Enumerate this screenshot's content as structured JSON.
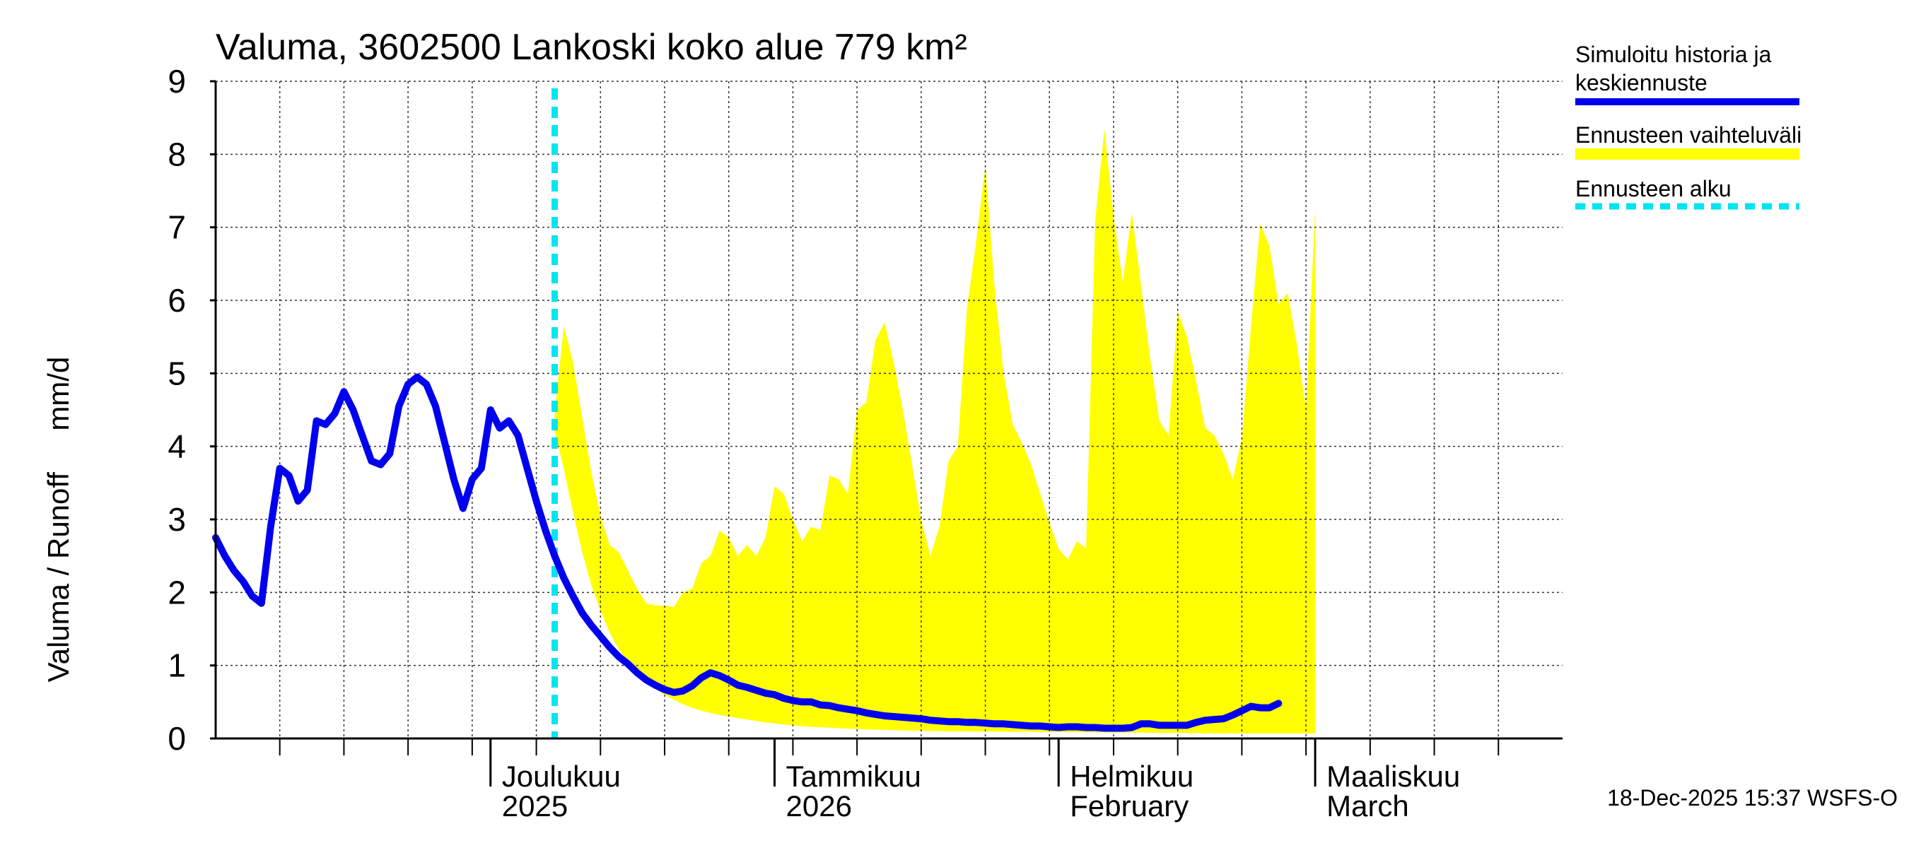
{
  "chart_data": {
    "type": "area",
    "title": "Valuma, 3602500 Lankoski koko alue 779 km²",
    "ylabel": "Valuma / Runoff     mm/d",
    "ylim": [
      0,
      9
    ],
    "yticks": [
      "0",
      "1",
      "2",
      "3",
      "4",
      "5",
      "6",
      "7",
      "8",
      "9"
    ],
    "x_unit": "day index from 2025-11-01 (day 0) to 2026-03-28 (day 147)",
    "xlim": [
      0,
      147
    ],
    "month_labels": [
      {
        "day": 30,
        "line1": "Joulukuu",
        "line2": "2025"
      },
      {
        "day": 61,
        "line1": "Tammikuu",
        "line2": "2026"
      },
      {
        "day": 92,
        "line1": "Helmikuu",
        "line2": "February"
      },
      {
        "day": 120,
        "line1": "Maaliskuu",
        "line2": "March"
      }
    ],
    "forecast_start_day": 37,
    "legend": {
      "placement": "right",
      "items": [
        {
          "label_line1": "Simuloitu historia ja",
          "label_line2": "keskiennuste",
          "color": "#0000ee",
          "style": "solid"
        },
        {
          "label_line1": "Ennusteen vaihteluväli",
          "label_line2": "",
          "color": "#ffff00",
          "style": "band"
        },
        {
          "label_line1": "Ennusteen alku",
          "label_line2": "",
          "color": "#00e5ee",
          "style": "dashed"
        }
      ]
    },
    "timestamp": "18-Dec-2025 15:37 WSFS-O",
    "series": [
      {
        "name": "Simuloitu historia ja keskiennuste",
        "color": "#0000ee",
        "points": [
          [
            0,
            2.75
          ],
          [
            1,
            2.5
          ],
          [
            2,
            2.3
          ],
          [
            3,
            2.15
          ],
          [
            4,
            1.95
          ],
          [
            5,
            1.85
          ],
          [
            6,
            2.9
          ],
          [
            7,
            3.7
          ],
          [
            8,
            3.6
          ],
          [
            9,
            3.25
          ],
          [
            10,
            3.4
          ],
          [
            11,
            4.35
          ],
          [
            12,
            4.3
          ],
          [
            13,
            4.45
          ],
          [
            14,
            4.75
          ],
          [
            15,
            4.5
          ],
          [
            16,
            4.15
          ],
          [
            17,
            3.8
          ],
          [
            18,
            3.75
          ],
          [
            19,
            3.9
          ],
          [
            20,
            4.55
          ],
          [
            21,
            4.85
          ],
          [
            22,
            4.95
          ],
          [
            23,
            4.85
          ],
          [
            24,
            4.55
          ],
          [
            25,
            4.05
          ],
          [
            26,
            3.55
          ],
          [
            27,
            3.15
          ],
          [
            28,
            3.55
          ],
          [
            29,
            3.7
          ],
          [
            30,
            4.5
          ],
          [
            31,
            4.25
          ],
          [
            32,
            4.35
          ],
          [
            33,
            4.15
          ],
          [
            34,
            3.7
          ],
          [
            35,
            3.25
          ],
          [
            36,
            2.85
          ],
          [
            37,
            2.5
          ],
          [
            38,
            2.2
          ],
          [
            39,
            1.95
          ],
          [
            40,
            1.72
          ],
          [
            41,
            1.55
          ],
          [
            42,
            1.4
          ],
          [
            43,
            1.25
          ],
          [
            44,
            1.12
          ],
          [
            45,
            1.02
          ],
          [
            46,
            0.9
          ],
          [
            47,
            0.8
          ],
          [
            48,
            0.73
          ],
          [
            49,
            0.67
          ],
          [
            50,
            0.63
          ],
          [
            51,
            0.65
          ],
          [
            52,
            0.72
          ],
          [
            53,
            0.83
          ],
          [
            54,
            0.9
          ],
          [
            55,
            0.86
          ],
          [
            56,
            0.8
          ],
          [
            57,
            0.73
          ],
          [
            58,
            0.7
          ],
          [
            59,
            0.66
          ],
          [
            60,
            0.62
          ],
          [
            61,
            0.6
          ],
          [
            62,
            0.55
          ],
          [
            63,
            0.52
          ],
          [
            64,
            0.5
          ],
          [
            65,
            0.5
          ],
          [
            66,
            0.46
          ],
          [
            67,
            0.45
          ],
          [
            68,
            0.42
          ],
          [
            69,
            0.4
          ],
          [
            70,
            0.38
          ],
          [
            71,
            0.35
          ],
          [
            72,
            0.33
          ],
          [
            73,
            0.31
          ],
          [
            74,
            0.3
          ],
          [
            75,
            0.29
          ],
          [
            76,
            0.28
          ],
          [
            77,
            0.27
          ],
          [
            78,
            0.25
          ],
          [
            79,
            0.24
          ],
          [
            80,
            0.23
          ],
          [
            81,
            0.23
          ],
          [
            82,
            0.22
          ],
          [
            83,
            0.22
          ],
          [
            84,
            0.21
          ],
          [
            85,
            0.2
          ],
          [
            86,
            0.2
          ],
          [
            87,
            0.19
          ],
          [
            88,
            0.18
          ],
          [
            89,
            0.17
          ],
          [
            90,
            0.17
          ],
          [
            91,
            0.16
          ],
          [
            92,
            0.15
          ],
          [
            93,
            0.16
          ],
          [
            94,
            0.16
          ],
          [
            95,
            0.15
          ],
          [
            96,
            0.15
          ],
          [
            97,
            0.14
          ],
          [
            98,
            0.14
          ],
          [
            99,
            0.14
          ],
          [
            100,
            0.15
          ],
          [
            101,
            0.2
          ],
          [
            102,
            0.2
          ],
          [
            103,
            0.18
          ],
          [
            104,
            0.18
          ],
          [
            105,
            0.18
          ],
          [
            106,
            0.18
          ],
          [
            107,
            0.22
          ],
          [
            108,
            0.25
          ],
          [
            109,
            0.26
          ],
          [
            110,
            0.27
          ],
          [
            111,
            0.32
          ],
          [
            112,
            0.38
          ],
          [
            113,
            0.44
          ],
          [
            114,
            0.42
          ],
          [
            115,
            0.42
          ],
          [
            116,
            0.48
          ]
        ]
      }
    ],
    "band": {
      "name": "Ennusteen vaihteluväli",
      "color": "#ffff00",
      "upper": [
        [
          37,
          4.45
        ],
        [
          38,
          5.65
        ],
        [
          39,
          5.15
        ],
        [
          40,
          4.4
        ],
        [
          41,
          3.65
        ],
        [
          42,
          3.05
        ],
        [
          43,
          2.65
        ],
        [
          44,
          2.55
        ],
        [
          45,
          2.3
        ],
        [
          46,
          2.05
        ],
        [
          47,
          1.85
        ],
        [
          48,
          1.82
        ],
        [
          49,
          1.82
        ],
        [
          50,
          1.8
        ],
        [
          51,
          2.0
        ],
        [
          52,
          2.05
        ],
        [
          53,
          2.4
        ],
        [
          54,
          2.5
        ],
        [
          55,
          2.85
        ],
        [
          56,
          2.75
        ],
        [
          57,
          2.5
        ],
        [
          58,
          2.65
        ],
        [
          59,
          2.5
        ],
        [
          60,
          2.75
        ],
        [
          61,
          3.45
        ],
        [
          62,
          3.35
        ],
        [
          63,
          3.0
        ],
        [
          64,
          2.7
        ],
        [
          65,
          2.9
        ],
        [
          66,
          2.85
        ],
        [
          67,
          3.6
        ],
        [
          68,
          3.55
        ],
        [
          69,
          3.35
        ],
        [
          70,
          4.5
        ],
        [
          71,
          4.6
        ],
        [
          72,
          5.45
        ],
        [
          73,
          5.7
        ],
        [
          74,
          5.15
        ],
        [
          75,
          4.5
        ],
        [
          76,
          3.75
        ],
        [
          77,
          3.0
        ],
        [
          78,
          2.5
        ],
        [
          79,
          2.9
        ],
        [
          80,
          3.8
        ],
        [
          81,
          4.0
        ],
        [
          82,
          5.9
        ],
        [
          83,
          6.8
        ],
        [
          84,
          7.85
        ],
        [
          85,
          6.2
        ],
        [
          86,
          5.0
        ],
        [
          87,
          4.3
        ],
        [
          88,
          4.05
        ],
        [
          89,
          3.75
        ],
        [
          90,
          3.35
        ],
        [
          91,
          2.95
        ],
        [
          92,
          2.6
        ],
        [
          93,
          2.45
        ],
        [
          94,
          2.7
        ],
        [
          95,
          2.6
        ],
        [
          96,
          7.1
        ],
        [
          97,
          8.35
        ],
        [
          98,
          7.15
        ],
        [
          99,
          6.25
        ],
        [
          100,
          7.2
        ],
        [
          101,
          6.2
        ],
        [
          102,
          5.2
        ],
        [
          103,
          4.35
        ],
        [
          104,
          4.15
        ],
        [
          105,
          5.85
        ],
        [
          106,
          5.5
        ],
        [
          107,
          4.9
        ],
        [
          108,
          4.25
        ],
        [
          109,
          4.15
        ],
        [
          110,
          3.9
        ],
        [
          111,
          3.55
        ],
        [
          112,
          4.1
        ],
        [
          113,
          5.65
        ],
        [
          114,
          7.05
        ],
        [
          115,
          6.75
        ],
        [
          116,
          5.95
        ],
        [
          117,
          6.1
        ],
        [
          118,
          5.4
        ],
        [
          119,
          4.5
        ],
        [
          120,
          7.25
        ]
      ],
      "lower": [
        [
          37,
          4.2
        ],
        [
          38,
          3.7
        ],
        [
          39,
          3.1
        ],
        [
          40,
          2.55
        ],
        [
          41,
          2.1
        ],
        [
          42,
          1.75
        ],
        [
          43,
          1.45
        ],
        [
          44,
          1.22
        ],
        [
          45,
          1.05
        ],
        [
          46,
          0.9
        ],
        [
          47,
          0.78
        ],
        [
          48,
          0.68
        ],
        [
          49,
          0.6
        ],
        [
          50,
          0.53
        ],
        [
          51,
          0.47
        ],
        [
          52,
          0.42
        ],
        [
          53,
          0.38
        ],
        [
          54,
          0.35
        ],
        [
          55,
          0.32
        ],
        [
          56,
          0.3
        ],
        [
          57,
          0.28
        ],
        [
          58,
          0.26
        ],
        [
          59,
          0.24
        ],
        [
          60,
          0.22
        ],
        [
          62,
          0.19
        ],
        [
          65,
          0.16
        ],
        [
          70,
          0.13
        ],
        [
          75,
          0.11
        ],
        [
          80,
          0.1
        ],
        [
          90,
          0.09
        ],
        [
          100,
          0.08
        ],
        [
          110,
          0.07
        ],
        [
          120,
          0.07
        ]
      ]
    }
  }
}
